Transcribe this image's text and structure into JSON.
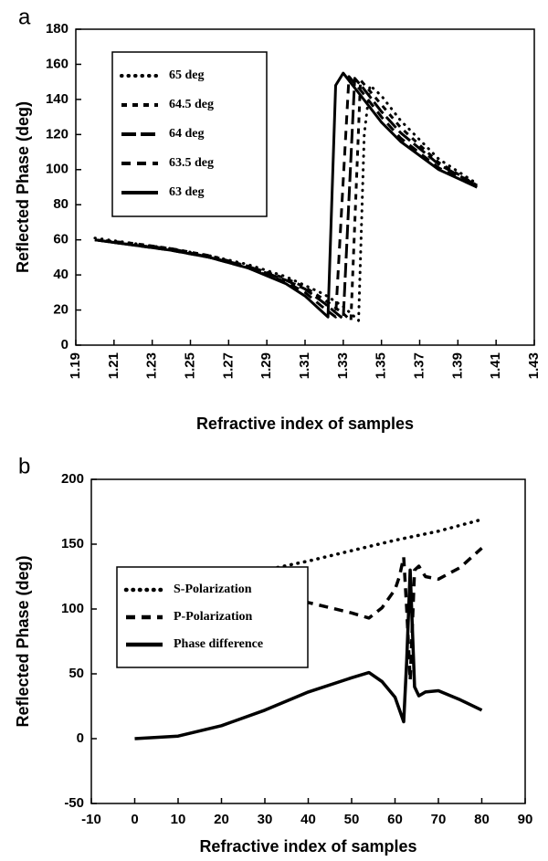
{
  "chart_data": [
    {
      "type": "line",
      "panel": "a",
      "xlabel": "Refractive index of samples",
      "ylabel": "Reflected Phase (deg)",
      "xlim": [
        1.19,
        1.43
      ],
      "xticks": [
        1.19,
        1.21,
        1.23,
        1.25,
        1.27,
        1.29,
        1.31,
        1.33,
        1.35,
        1.37,
        1.39,
        1.41,
        1.43
      ],
      "xtick_rotation": 90,
      "ylim": [
        0,
        180
      ],
      "yticks": [
        0,
        20,
        40,
        60,
        80,
        100,
        120,
        140,
        160,
        180
      ],
      "legend": "upper left",
      "series": [
        {
          "name": "65 deg",
          "color": "#000000",
          "style": "dotted",
          "x": [
            1.2,
            1.22,
            1.24,
            1.26,
            1.28,
            1.3,
            1.31,
            1.32,
            1.33,
            1.338,
            1.341,
            1.344,
            1.35,
            1.36,
            1.38,
            1.4
          ],
          "values": [
            61,
            58,
            55,
            51,
            46,
            39,
            34,
            29,
            22,
            14,
            120,
            148,
            142,
            128,
            106,
            92
          ]
        },
        {
          "name": "64.5 deg",
          "color": "#000000",
          "style": "short-dash",
          "x": [
            1.2,
            1.22,
            1.24,
            1.26,
            1.28,
            1.3,
            1.31,
            1.32,
            1.33,
            1.334,
            1.339,
            1.35,
            1.36,
            1.38,
            1.4
          ],
          "values": [
            60,
            58,
            55,
            51,
            45,
            38,
            33,
            26,
            18,
            14,
            151,
            137,
            124,
            104,
            91
          ]
        },
        {
          "name": "64 deg",
          "color": "#000000",
          "style": "long-dash",
          "x": [
            1.2,
            1.22,
            1.24,
            1.26,
            1.28,
            1.3,
            1.31,
            1.32,
            1.33,
            1.336,
            1.34,
            1.35,
            1.36,
            1.38,
            1.4
          ],
          "values": [
            60,
            57,
            55,
            50,
            45,
            37,
            32,
            24,
            15,
            152,
            147,
            133,
            121,
            103,
            91
          ]
        },
        {
          "name": "63.5 deg",
          "color": "#000000",
          "style": "dashed",
          "x": [
            1.2,
            1.22,
            1.24,
            1.26,
            1.28,
            1.3,
            1.31,
            1.32,
            1.326,
            1.333,
            1.34,
            1.35,
            1.36,
            1.38,
            1.4
          ],
          "values": [
            60,
            57,
            54,
            50,
            44,
            36,
            30,
            21,
            16,
            153,
            144,
            130,
            118,
            101,
            90
          ]
        },
        {
          "name": "63 deg",
          "color": "#000000",
          "style": "solid",
          "x": [
            1.2,
            1.22,
            1.24,
            1.26,
            1.28,
            1.3,
            1.31,
            1.32,
            1.322,
            1.326,
            1.33,
            1.34,
            1.35,
            1.36,
            1.38,
            1.4
          ],
          "values": [
            60,
            57,
            54,
            50,
            44,
            35,
            28,
            18,
            16,
            148,
            155,
            141,
            127,
            116,
            100,
            90
          ]
        }
      ]
    },
    {
      "type": "line",
      "panel": "b",
      "xlabel": "Refractive index of samples",
      "ylabel": "Reflected Phase (deg)",
      "xlim": [
        -10,
        90
      ],
      "xticks": [
        -10,
        0,
        10,
        20,
        30,
        40,
        50,
        60,
        70,
        80,
        90
      ],
      "ylim": [
        -50,
        200
      ],
      "yticks": [
        -50,
        0,
        50,
        100,
        150,
        200
      ],
      "legend": "center left",
      "series": [
        {
          "name": "S-Polarization",
          "color": "#000000",
          "style": "dotted",
          "x": [
            0,
            10,
            20,
            30,
            40,
            50,
            60,
            70,
            80
          ],
          "values": [
            121,
            122,
            125,
            130,
            137,
            145,
            153,
            160,
            169
          ]
        },
        {
          "name": "P-Polarization",
          "color": "#000000",
          "style": "dashed",
          "x": [
            0,
            10,
            20,
            30,
            40,
            50,
            54,
            57,
            60,
            61,
            62,
            62.7,
            63.5,
            64.5,
            65.5,
            67,
            70,
            75,
            80
          ],
          "values": [
            121,
            120,
            117,
            112,
            105,
            97,
            93,
            101,
            115,
            125,
            140,
            100,
            45,
            130,
            133,
            125,
            123,
            132,
            147
          ]
        },
        {
          "name": "Phase difference",
          "color": "#000000",
          "style": "solid",
          "x": [
            0,
            10,
            20,
            30,
            40,
            50,
            54,
            57,
            60,
            62,
            62.7,
            63.5,
            64.5,
            65.5,
            67,
            70,
            75,
            80
          ],
          "values": [
            0,
            2,
            10,
            22,
            36,
            47,
            51,
            44,
            32,
            13,
            60,
            130,
            40,
            33,
            36,
            37,
            30,
            22
          ]
        }
      ]
    }
  ]
}
